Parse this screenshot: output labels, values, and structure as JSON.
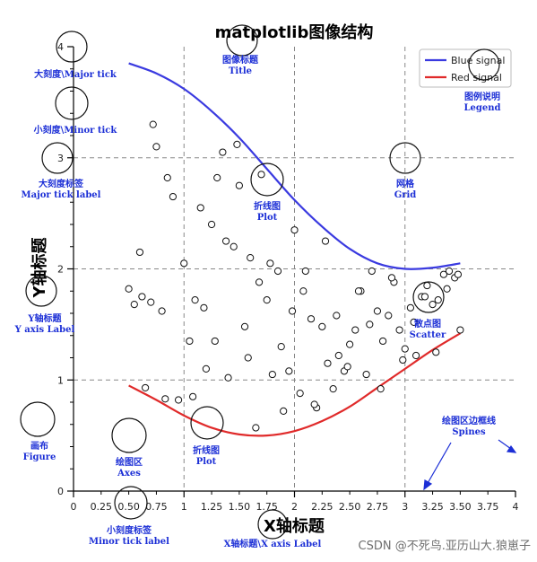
{
  "title": "matplotlib图像结构",
  "xlabel": "X轴标题",
  "ylabel": "Y轴标题",
  "watermark": "CSDN @不死鸟.亚历山大.狼崽子",
  "colors": {
    "blue": "#3a3ae0",
    "red": "#e02a2a",
    "annotation": "#1c2fd6"
  },
  "legend": {
    "blue": "Blue signal",
    "red": "Red signal"
  },
  "annotations": {
    "title": [
      "图像标题",
      "Title"
    ],
    "legend": [
      "图例说明",
      "Legend"
    ],
    "major_tick": [
      "大刻度\\Major tick"
    ],
    "minor_tick": [
      "小刻度\\Minor tick"
    ],
    "major_tick_label": [
      "大刻度标签",
      "Major tick label"
    ],
    "grid": [
      "网格",
      "Grid"
    ],
    "plot_top": [
      "折线图",
      "Plot"
    ],
    "y_label": [
      "Y轴标题",
      "Y axis Label"
    ],
    "scatter": [
      "散点图",
      "Scatter"
    ],
    "figure": [
      "画布",
      "Figure"
    ],
    "axes": [
      "绘图区",
      "Axes"
    ],
    "plot_bottom": [
      "折线图",
      "Plot"
    ],
    "spines": [
      "绘图区边框线",
      "Spines"
    ],
    "minor_tick_label": [
      "小刻度标签",
      "Minor tick label"
    ],
    "x_label": [
      "X轴标题\\X axis Label"
    ]
  },
  "chart_data": {
    "type": "line",
    "xlim": [
      0,
      4
    ],
    "ylim": [
      0,
      4
    ],
    "x_major_ticks": [
      "0",
      "1",
      "2",
      "3",
      "4"
    ],
    "x_minor_ticks": [
      "0.25",
      "0.50",
      "0.75",
      "1.25",
      "1.50",
      "1.75",
      "2.25",
      "2.50",
      "2.75",
      "3.25",
      "3.50",
      "3.75"
    ],
    "y_major_ticks": [
      "0",
      "1",
      "2",
      "3",
      "4"
    ],
    "grid": true,
    "legend_position": "top-right",
    "series": [
      {
        "name": "Blue signal",
        "color": "#3a3ae0",
        "x": [
          0.5,
          0.75,
          1.0,
          1.25,
          1.5,
          1.75,
          2.0,
          2.25,
          2.5,
          2.75,
          3.0,
          3.25,
          3.5
        ],
        "y": [
          3.85,
          3.76,
          3.62,
          3.42,
          3.18,
          2.9,
          2.62,
          2.38,
          2.18,
          2.05,
          2.0,
          2.01,
          2.05
        ]
      },
      {
        "name": "Red signal",
        "color": "#e02a2a",
        "x": [
          0.5,
          0.75,
          1.0,
          1.25,
          1.5,
          1.75,
          2.0,
          2.25,
          2.5,
          2.75,
          3.0,
          3.25,
          3.5
        ],
        "y": [
          0.95,
          0.82,
          0.68,
          0.57,
          0.51,
          0.5,
          0.54,
          0.63,
          0.76,
          0.93,
          1.1,
          1.27,
          1.42
        ]
      }
    ],
    "scatter": {
      "x": [
        0.5,
        0.55,
        0.6,
        0.65,
        0.7,
        0.75,
        0.8,
        0.85,
        0.9,
        0.95,
        1.0,
        1.05,
        1.1,
        1.15,
        1.2,
        1.25,
        1.3,
        1.35,
        1.4,
        1.45,
        1.5,
        1.55,
        1.6,
        1.65,
        1.7,
        1.75,
        1.8,
        1.85,
        1.9,
        1.95,
        2.0,
        2.05,
        2.1,
        2.15,
        2.2,
        2.25,
        2.3,
        2.35,
        2.4,
        2.45,
        2.5,
        2.55,
        2.6,
        2.65,
        2.7,
        2.75,
        2.8,
        2.85,
        2.9,
        2.95,
        3.0,
        3.05,
        3.1,
        3.15,
        3.2,
        3.25,
        3.3,
        3.35,
        3.4,
        3.45,
        3.5,
        0.62,
        0.72,
        0.83,
        1.08,
        1.18,
        1.28,
        1.38,
        1.48,
        1.58,
        1.68,
        1.78,
        1.88,
        1.98,
        2.08,
        2.18,
        2.28,
        2.38,
        2.48,
        2.58,
        2.68,
        2.78,
        2.88,
        2.98,
        3.08,
        3.18,
        3.28,
        3.38,
        3.48
      ],
      "y": [
        1.82,
        1.68,
        2.15,
        0.93,
        1.7,
        3.1,
        1.62,
        2.82,
        2.65,
        0.82,
        2.05,
        1.35,
        1.72,
        2.55,
        1.1,
        2.4,
        2.82,
        3.05,
        1.02,
        2.2,
        2.75,
        1.48,
        2.1,
        0.57,
        2.85,
        1.72,
        1.05,
        1.98,
        0.72,
        1.08,
        2.35,
        0.88,
        1.98,
        1.55,
        0.75,
        1.48,
        1.15,
        0.92,
        1.22,
        1.08,
        1.32,
        1.45,
        1.8,
        1.05,
        1.98,
        1.62,
        1.35,
        1.58,
        1.88,
        1.45,
        1.28,
        1.65,
        1.22,
        1.75,
        1.85,
        1.68,
        1.72,
        1.95,
        1.98,
        1.92,
        1.45,
        1.75,
        3.3,
        0.83,
        0.85,
        1.65,
        1.35,
        2.25,
        3.12,
        1.2,
        1.88,
        2.05,
        1.3,
        1.62,
        1.8,
        0.78,
        2.25,
        1.58,
        1.12,
        1.8,
        1.5,
        0.92,
        1.92,
        1.18,
        1.52,
        1.75,
        1.25,
        1.82,
        1.95
      ]
    }
  }
}
